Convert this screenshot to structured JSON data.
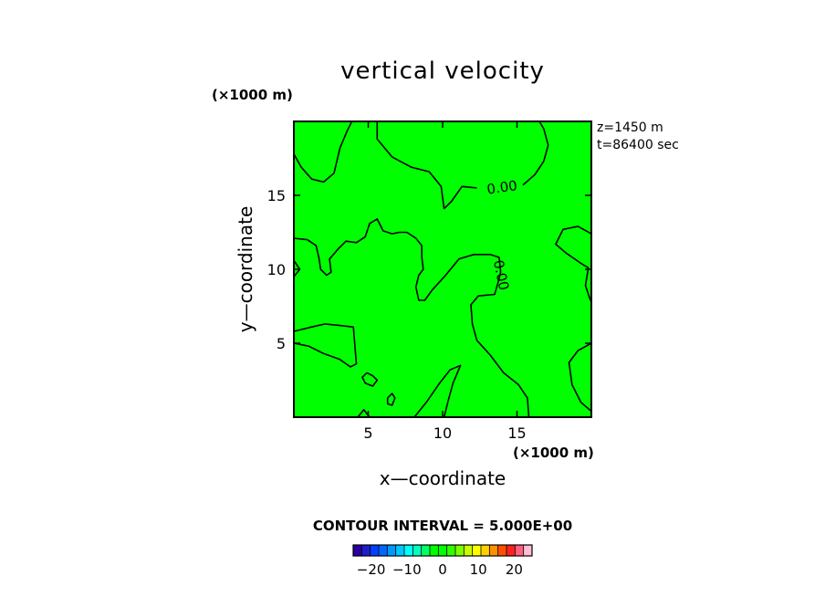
{
  "chart_data": {
    "type": "contour",
    "title": "vertical velocity",
    "xlabel": "x—coordinate",
    "ylabel": "y—coordinate",
    "x_unit": "(×1000 m)",
    "y_unit": "(×1000 m)",
    "xlim": [
      0,
      20
    ],
    "ylim": [
      0,
      20
    ],
    "xticks": [
      5,
      10,
      15
    ],
    "yticks": [
      5,
      10,
      15
    ],
    "info": [
      "z=1450  m",
      "t=86400  sec"
    ],
    "fill_color": "#00ff00",
    "contour_labels": [
      {
        "text": "0.00",
        "x": 14.0,
        "y": 15.5,
        "angle": -8
      },
      {
        "text": "0.00",
        "x": 13.9,
        "y": 9.6,
        "angle": 78
      }
    ],
    "contour_interval_label": "CONTOUR INTERVAL = 5.000E+00",
    "colorbar": {
      "ticks": [
        -20,
        -10,
        0,
        10,
        20
      ],
      "tick_labels": [
        "−20",
        "−10",
        "0",
        "10",
        "20"
      ],
      "range": [
        -25,
        25
      ],
      "colors": [
        "#2a00a0",
        "#1f1fc8",
        "#0040ff",
        "#0066ff",
        "#0099ff",
        "#00c8ff",
        "#00ffff",
        "#00ffc0",
        "#00ff60",
        "#00ff00",
        "#00ff00",
        "#30ff00",
        "#80ff00",
        "#c8ff00",
        "#ffff00",
        "#ffd000",
        "#ff9000",
        "#ff5000",
        "#ff2020",
        "#ff6080",
        "#ffc0d0"
      ]
    },
    "contours": [
      [
        [
          0.0,
          17.8
        ],
        [
          0.5,
          16.9
        ],
        [
          1.2,
          16.1
        ],
        [
          2.0,
          15.9
        ],
        [
          2.7,
          16.5
        ],
        [
          3.1,
          18.2
        ],
        [
          3.6,
          19.4
        ],
        [
          3.9,
          20.0
        ]
      ],
      [
        [
          5.6,
          20.0
        ],
        [
          5.6,
          18.8
        ],
        [
          6.6,
          17.6
        ],
        [
          7.9,
          16.9
        ],
        [
          9.1,
          16.6
        ],
        [
          9.9,
          15.6
        ],
        [
          10.1,
          14.1
        ],
        [
          10.6,
          14.6
        ],
        [
          11.3,
          15.6
        ],
        [
          12.3,
          15.5
        ]
      ],
      [
        [
          15.4,
          15.7
        ],
        [
          16.2,
          16.4
        ],
        [
          16.8,
          17.3
        ],
        [
          17.1,
          18.4
        ],
        [
          16.8,
          19.5
        ],
        [
          16.5,
          20.0
        ]
      ],
      [
        [
          0.0,
          12.1
        ],
        [
          0.9,
          12.0
        ],
        [
          1.5,
          11.6
        ],
        [
          1.7,
          10.7
        ],
        [
          1.8,
          10.0
        ],
        [
          2.2,
          9.6
        ],
        [
          2.5,
          9.8
        ],
        [
          2.4,
          10.7
        ],
        [
          3.0,
          11.4
        ],
        [
          3.5,
          11.9
        ],
        [
          4.2,
          11.8
        ],
        [
          4.8,
          12.2
        ],
        [
          5.1,
          13.1
        ],
        [
          5.6,
          13.4
        ],
        [
          6.0,
          12.6
        ],
        [
          6.6,
          12.4
        ],
        [
          7.1,
          12.5
        ],
        [
          7.6,
          12.5
        ],
        [
          8.2,
          12.1
        ],
        [
          8.6,
          11.6
        ],
        [
          8.6,
          10.8
        ],
        [
          8.7,
          10.0
        ],
        [
          8.4,
          9.6
        ],
        [
          8.2,
          8.8
        ],
        [
          8.4,
          7.9
        ],
        [
          8.8,
          7.9
        ],
        [
          9.3,
          8.6
        ],
        [
          10.2,
          9.6
        ],
        [
          11.1,
          10.7
        ],
        [
          12.1,
          11.0
        ],
        [
          13.2,
          11.0
        ],
        [
          13.8,
          10.8
        ],
        [
          13.9,
          9.8
        ],
        [
          13.7,
          9.0
        ],
        [
          13.5,
          8.3
        ],
        [
          12.4,
          8.2
        ],
        [
          11.9,
          7.6
        ],
        [
          12.0,
          6.3
        ],
        [
          12.3,
          5.2
        ],
        [
          13.2,
          4.2
        ],
        [
          14.1,
          3.0
        ],
        [
          15.1,
          2.2
        ],
        [
          15.7,
          1.3
        ],
        [
          15.8,
          0.0
        ]
      ],
      [
        [
          0.0,
          10.6
        ],
        [
          0.4,
          10.0
        ],
        [
          0.0,
          9.5
        ]
      ],
      [
        [
          20.0,
          12.4
        ],
        [
          19.1,
          12.9
        ],
        [
          18.1,
          12.7
        ],
        [
          17.6,
          11.7
        ],
        [
          18.3,
          11.1
        ],
        [
          19.3,
          10.4
        ],
        [
          19.8,
          10.1
        ],
        [
          19.6,
          8.9
        ],
        [
          19.9,
          8.0
        ],
        [
          20.0,
          7.8
        ]
      ],
      [
        [
          0.0,
          5.8
        ],
        [
          1.2,
          6.1
        ],
        [
          2.1,
          6.3
        ],
        [
          3.1,
          6.2
        ],
        [
          4.0,
          6.1
        ],
        [
          4.1,
          4.9
        ],
        [
          4.2,
          3.6
        ],
        [
          3.8,
          3.4
        ],
        [
          3.1,
          3.9
        ],
        [
          2.0,
          4.3
        ],
        [
          1.0,
          4.8
        ],
        [
          0.0,
          5.0
        ]
      ],
      [
        [
          4.9,
          3.0
        ],
        [
          5.3,
          2.8
        ],
        [
          5.6,
          2.5
        ],
        [
          5.3,
          2.1
        ],
        [
          4.8,
          2.3
        ],
        [
          4.6,
          2.7
        ],
        [
          4.9,
          3.0
        ]
      ],
      [
        [
          6.3,
          1.3
        ],
        [
          6.6,
          1.6
        ],
        [
          6.8,
          1.3
        ],
        [
          6.6,
          0.8
        ],
        [
          6.3,
          0.9
        ],
        [
          6.3,
          1.3
        ]
      ],
      [
        [
          4.3,
          0.0
        ],
        [
          4.7,
          0.5
        ],
        [
          5.1,
          0.0
        ]
      ],
      [
        [
          8.1,
          0.0
        ],
        [
          8.9,
          1.0
        ],
        [
          9.8,
          2.3
        ],
        [
          10.5,
          3.2
        ],
        [
          11.2,
          3.5
        ],
        [
          10.7,
          2.3
        ],
        [
          10.4,
          1.2
        ],
        [
          10.1,
          0.0
        ]
      ],
      [
        [
          20.0,
          5.0
        ],
        [
          19.1,
          4.5
        ],
        [
          18.5,
          3.7
        ],
        [
          18.7,
          2.2
        ],
        [
          19.3,
          1.0
        ],
        [
          20.0,
          0.4
        ]
      ]
    ]
  }
}
